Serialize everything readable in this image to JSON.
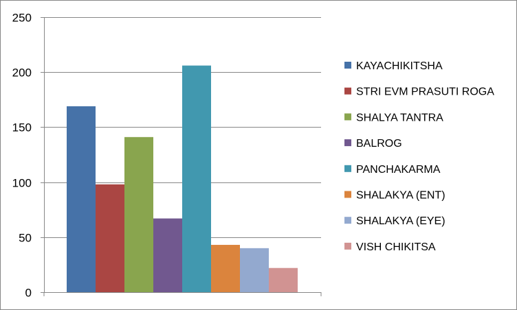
{
  "chart_data": {
    "type": "bar",
    "title": "",
    "xlabel": "",
    "ylabel": "",
    "ylim": [
      0,
      250
    ],
    "y_ticks": [
      "0",
      "50",
      "100",
      "150",
      "200",
      "250"
    ],
    "grid": true,
    "legend_position": "right",
    "categories": [
      ""
    ],
    "series": [
      {
        "name": "KAYACHIKITSHA",
        "values": [
          169
        ],
        "color": "#4672A8"
      },
      {
        "name": "STRI EVM PRASUTI ROGA",
        "values": [
          98
        ],
        "color": "#AA4643"
      },
      {
        "name": "SHALYA TANTRA",
        "values": [
          141
        ],
        "color": "#89A54E"
      },
      {
        "name": "BALROG",
        "values": [
          67
        ],
        "color": "#71588F"
      },
      {
        "name": "PANCHAKARMA",
        "values": [
          206
        ],
        "color": "#4198AF"
      },
      {
        "name": "SHALAKYA (ENT)",
        "values": [
          43
        ],
        "color": "#DB843D"
      },
      {
        "name": "SHALAKYA (EYE)",
        "values": [
          40
        ],
        "color": "#93A9CF"
      },
      {
        "name": "VISH CHIKITSA",
        "values": [
          22
        ],
        "color": "#D19392"
      }
    ]
  }
}
